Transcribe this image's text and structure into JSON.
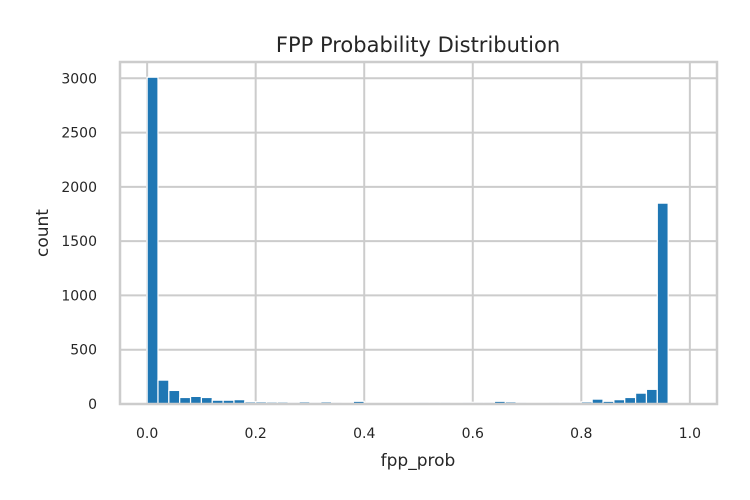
{
  "chart_data": {
    "type": "bar",
    "title": "FPP Probability Distribution",
    "xlabel": "fpp_prob",
    "ylabel": "count",
    "xlim": [
      -0.05,
      1.05
    ],
    "ylim": [
      0,
      3150
    ],
    "grid": true,
    "x_ticks": [
      0.0,
      0.2,
      0.4,
      0.6,
      0.8,
      1.0
    ],
    "x_tick_labels": [
      "0.0",
      "0.2",
      "0.4",
      "0.6",
      "0.8",
      "1.0"
    ],
    "y_ticks": [
      0,
      500,
      1000,
      1500,
      2000,
      2500,
      3000
    ],
    "y_tick_labels": [
      "0",
      "500",
      "1000",
      "1500",
      "2000",
      "2500",
      "3000"
    ],
    "bin_width": 0.02,
    "bin_starts": [
      0.0,
      0.02,
      0.04,
      0.06,
      0.08,
      0.1,
      0.12,
      0.14,
      0.16,
      0.18,
      0.2,
      0.22,
      0.24,
      0.26,
      0.28,
      0.3,
      0.32,
      0.34,
      0.36,
      0.38,
      0.4,
      0.42,
      0.44,
      0.46,
      0.48,
      0.5,
      0.52,
      0.54,
      0.56,
      0.58,
      0.6,
      0.62,
      0.64,
      0.66,
      0.68,
      0.7,
      0.72,
      0.74,
      0.76,
      0.78,
      0.8,
      0.82,
      0.84,
      0.86,
      0.88,
      0.9,
      0.92,
      0.94,
      0.96,
      0.98
    ],
    "values": [
      3010,
      220,
      125,
      60,
      70,
      60,
      35,
      35,
      40,
      20,
      20,
      18,
      18,
      15,
      20,
      15,
      20,
      15,
      12,
      25,
      12,
      12,
      12,
      12,
      12,
      15,
      15,
      15,
      12,
      15,
      15,
      15,
      25,
      20,
      15,
      12,
      12,
      15,
      15,
      15,
      20,
      45,
      25,
      40,
      60,
      100,
      135,
      1850,
      0,
      0
    ],
    "color": "#1f77b4"
  }
}
